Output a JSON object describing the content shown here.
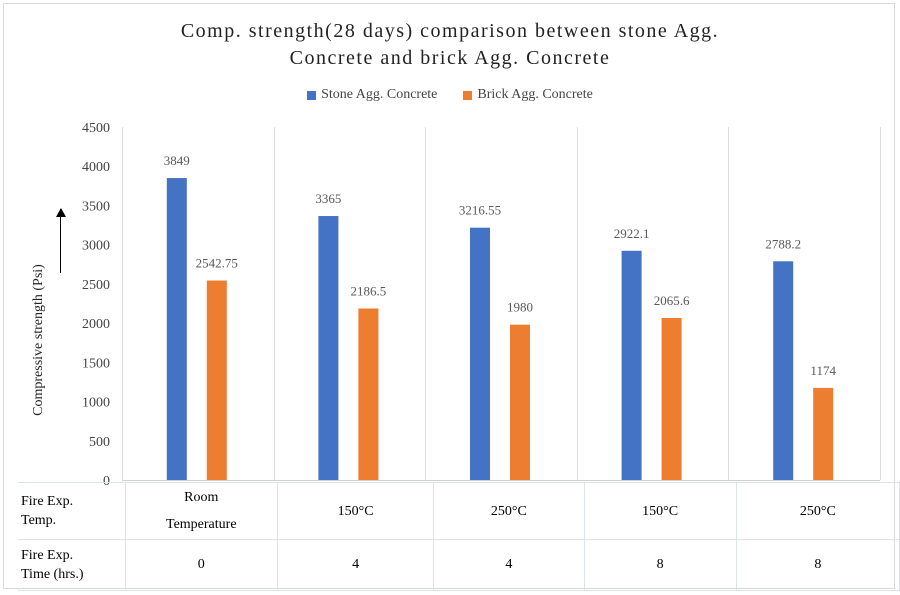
{
  "chart_data": {
    "type": "bar",
    "title": "Comp. strength(28 days) comparison between stone Agg. Concrete and brick Agg. Concrete",
    "title_lines": [
      "Comp. strength(28 days) comparison between stone Agg.",
      "Concrete and brick Agg. Concrete"
    ],
    "ylabel": "Compressive strength (Psi)",
    "ylim": [
      0,
      4500
    ],
    "yticks": [
      0,
      500,
      1000,
      1500,
      2000,
      2500,
      3000,
      3500,
      4000,
      4500
    ],
    "grid": "vertical category separators",
    "legend_position": "top",
    "categories": [
      "Room Temperature",
      "150°C",
      "250°C",
      "150°C",
      "250°C"
    ],
    "series": [
      {
        "name": "Stone Agg. Concrete",
        "color": "#4472c4",
        "values": [
          3849,
          3365,
          3216.55,
          2922.1,
          2788.2
        ],
        "labels": [
          "3849",
          "3365",
          "3216.55",
          "2922.1",
          "2788.2"
        ]
      },
      {
        "name": "Brick Agg. Concrete",
        "color": "#ed7d31",
        "values": [
          2542.75,
          2186.5,
          1980,
          2065.6,
          1174
        ],
        "labels": [
          "2542.75",
          "2186.5",
          "1980",
          "2065.6",
          "1174"
        ]
      }
    ]
  },
  "table": {
    "row1_header": [
      "Fire Exp.",
      "Temp."
    ],
    "row2_header": [
      "Fire Exp.",
      "Time (hrs.)"
    ],
    "temp_cells": [
      [
        "Room",
        "Temperature"
      ],
      [
        "150°C"
      ],
      [
        "250°C"
      ],
      [
        "150°C"
      ],
      [
        "250°C"
      ]
    ],
    "time_cells": [
      "0",
      "4",
      "4",
      "8",
      "8"
    ]
  }
}
